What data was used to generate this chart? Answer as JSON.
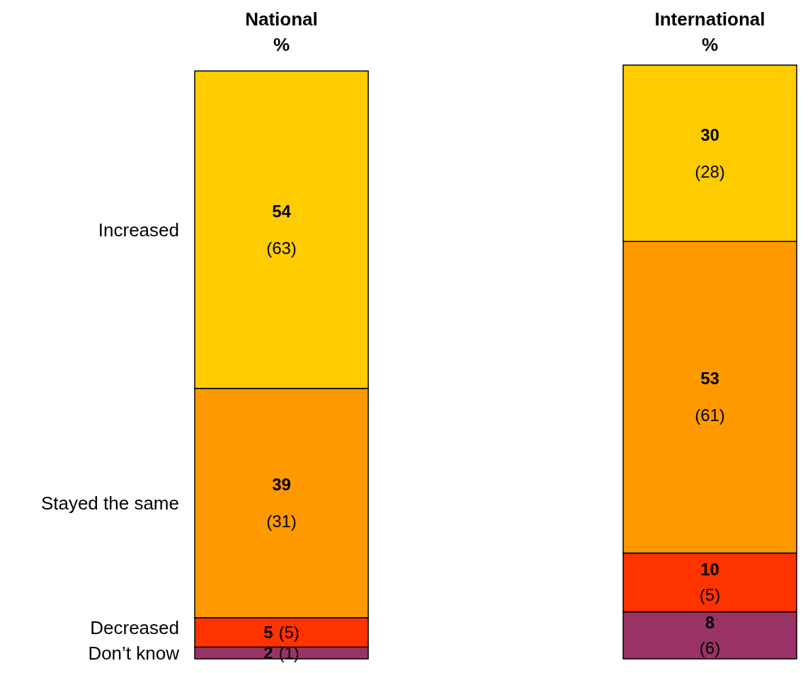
{
  "chart_data": {
    "type": "bar",
    "stacked": true,
    "categories": [
      "National",
      "International"
    ],
    "ylabel": "%",
    "ylim": [
      0,
      101
    ],
    "tick_labels": "x",
    "series": [
      {
        "name": "Don’t know",
        "color": "#993366",
        "values": [
          2,
          8
        ],
        "value_labels": [
          "2 (1)",
          "8 (6)"
        ]
      },
      {
        "name": "Decreased",
        "color": "#ff3300",
        "values": [
          5,
          10
        ],
        "value_labels": [
          "5 (5)",
          "10 (5)"
        ]
      },
      {
        "name": "Stayed the same",
        "color": "#ff9900",
        "values": [
          39,
          53
        ],
        "value_labels": [
          "39 (31)",
          "53 (61)"
        ]
      },
      {
        "name": "Increased",
        "color": "#ffcc00",
        "values": [
          54,
          30
        ],
        "value_labels": [
          "54 (63)",
          "30 (28)"
        ]
      }
    ]
  }
}
